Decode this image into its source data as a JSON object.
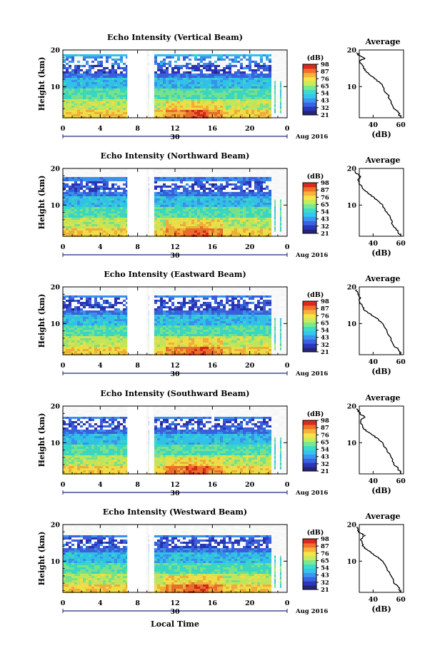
{
  "chart_data": {
    "x_date_label": "Aug 2016",
    "x_axis_label": "Local Time",
    "day_label": "30",
    "x_ticks": [
      "0",
      "4",
      "8",
      "12",
      "16",
      "20",
      "0"
    ],
    "height_axis": {
      "label": "Height (km)",
      "ticks": [
        "10",
        "20"
      ],
      "range": [
        1.5,
        20
      ]
    },
    "colorbar": {
      "unit": "(dB)",
      "levels": [
        "21",
        "32",
        "43",
        "54",
        "65",
        "76",
        "87",
        "98"
      ],
      "colors": [
        "#24247a",
        "#2b36b8",
        "#3b62e0",
        "#3a96f0",
        "#33c6ee",
        "#3cdcc8",
        "#7ae890",
        "#c6ec5c",
        "#f4e44a",
        "#f6b23a",
        "#f0702c",
        "#d82a1e"
      ]
    },
    "profile": {
      "title": "Average",
      "xlabel": "(dB)"
    },
    "panels": [
      {
        "title": "Echo Intensity (Vertical Beam)",
        "profile_ticks": [
          "40",
          "60"
        ],
        "average_profile": [
          [
            60,
            1.5
          ],
          [
            58,
            3
          ],
          [
            55,
            4
          ],
          [
            53,
            6
          ],
          [
            50,
            8
          ],
          [
            47,
            10
          ],
          [
            45,
            11
          ],
          [
            42,
            12
          ],
          [
            38,
            13
          ],
          [
            35,
            14
          ],
          [
            33,
            15
          ],
          [
            32,
            16
          ],
          [
            30,
            17
          ],
          [
            34,
            17.7
          ],
          [
            30,
            18.5
          ],
          [
            28,
            19.3
          ]
        ]
      },
      {
        "title": "Echo Intensity (Northward Beam)",
        "profile_ticks": [
          "40",
          "60"
        ],
        "average_profile": [
          [
            60,
            1.5
          ],
          [
            58,
            3
          ],
          [
            55,
            4
          ],
          [
            53,
            6
          ],
          [
            50,
            8
          ],
          [
            47,
            10
          ],
          [
            44,
            11
          ],
          [
            41,
            12
          ],
          [
            37,
            13
          ],
          [
            34,
            14
          ],
          [
            32,
            15
          ],
          [
            30,
            16
          ],
          [
            29,
            17
          ],
          [
            31,
            17.8
          ],
          [
            28,
            18.6
          ],
          [
            27,
            19.3
          ]
        ]
      },
      {
        "title": "Echo Intensity (Eastward Beam)",
        "profile_ticks": [
          "40",
          "60"
        ],
        "average_profile": [
          [
            60,
            1.5
          ],
          [
            58,
            3
          ],
          [
            55,
            4
          ],
          [
            53,
            6
          ],
          [
            50,
            8
          ],
          [
            47,
            10
          ],
          [
            44,
            11
          ],
          [
            40,
            12
          ],
          [
            36,
            13
          ],
          [
            33,
            14
          ],
          [
            32,
            15
          ],
          [
            30,
            16
          ],
          [
            31,
            17
          ],
          [
            29,
            18
          ],
          [
            28,
            19.3
          ]
        ]
      },
      {
        "title": "Echo Intensity (Southward Beam)",
        "profile_ticks": [
          "40",
          "60"
        ],
        "average_profile": [
          [
            60,
            1.5
          ],
          [
            58,
            3
          ],
          [
            55,
            4
          ],
          [
            53,
            6
          ],
          [
            50,
            8
          ],
          [
            47,
            10
          ],
          [
            44,
            11
          ],
          [
            40,
            12
          ],
          [
            36,
            13
          ],
          [
            33,
            14
          ],
          [
            32,
            15
          ],
          [
            31,
            16
          ],
          [
            34,
            17
          ],
          [
            31,
            17.7
          ],
          [
            29,
            18.6
          ],
          [
            28,
            19.3
          ]
        ]
      },
      {
        "title": "Echo Intensity (Westward Beam)",
        "profile_ticks": [
          "40",
          "60"
        ],
        "average_profile": [
          [
            60,
            1.5
          ],
          [
            58,
            3
          ],
          [
            55,
            4
          ],
          [
            53,
            6
          ],
          [
            50,
            8
          ],
          [
            47,
            10
          ],
          [
            44,
            11
          ],
          [
            40,
            12
          ],
          [
            36,
            13
          ],
          [
            33,
            14
          ],
          [
            32,
            15
          ],
          [
            31,
            16
          ],
          [
            34,
            17
          ],
          [
            30,
            17.8
          ],
          [
            29,
            18.6
          ],
          [
            28,
            19.3
          ]
        ]
      }
    ]
  }
}
